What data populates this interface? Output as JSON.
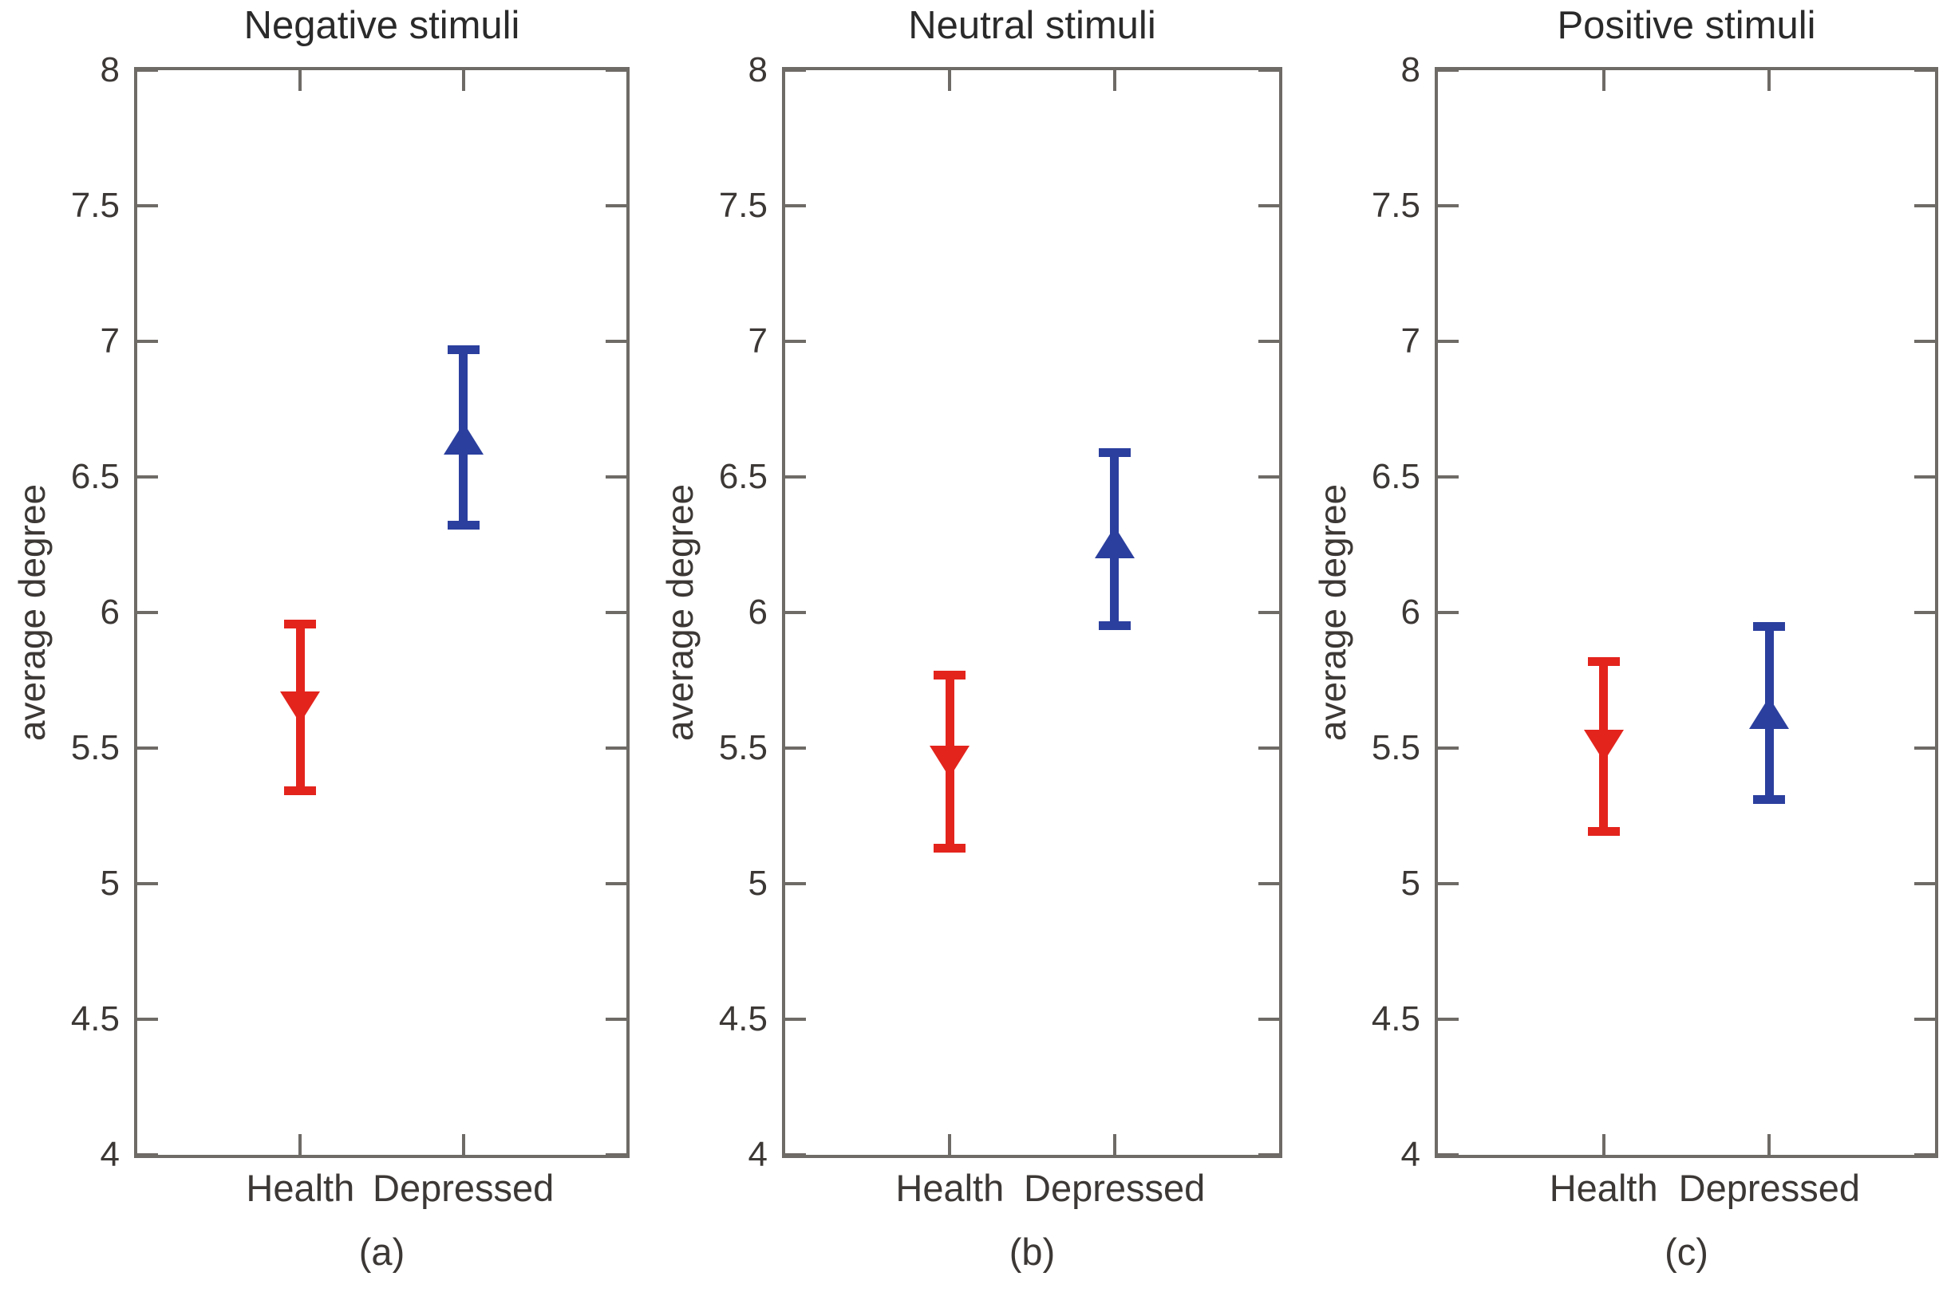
{
  "figure": {
    "background": "#ffffff",
    "grid": false,
    "legend": null
  },
  "style": {
    "axis_color": "#6e6a66",
    "tick_label_color": "#3c3836",
    "title_color": "#2a2a2a",
    "health_color": "#e3241d",
    "depressed_color": "#2b3f9e"
  },
  "chart_data": [
    {
      "type": "scatter",
      "subtype": "errorbar",
      "title": "Negative stimuli",
      "caption": "(a)",
      "xlabel": "",
      "ylabel": "average degree",
      "ylim": [
        4,
        8
      ],
      "yticks": [
        4,
        4.5,
        5,
        5.5,
        6,
        6.5,
        7,
        7.5,
        8
      ],
      "categories": [
        "Health",
        "Depressed"
      ],
      "series": [
        {
          "name": "Health",
          "marker": "triangle-down",
          "color": "#e3241d",
          "mean": 5.65,
          "ci_low": 5.34,
          "ci_high": 5.96
        },
        {
          "name": "Depressed",
          "marker": "triangle-up",
          "color": "#2b3f9e",
          "mean": 6.64,
          "ci_low": 6.32,
          "ci_high": 6.97
        }
      ]
    },
    {
      "type": "scatter",
      "subtype": "errorbar",
      "title": "Neutral stimuli",
      "caption": "(b)",
      "xlabel": "",
      "ylabel": "average degree",
      "ylim": [
        4,
        8
      ],
      "yticks": [
        4,
        4.5,
        5,
        5.5,
        6,
        6.5,
        7,
        7.5,
        8
      ],
      "categories": [
        "Health",
        "Depressed"
      ],
      "series": [
        {
          "name": "Health",
          "marker": "triangle-down",
          "color": "#e3241d",
          "mean": 5.45,
          "ci_low": 5.13,
          "ci_high": 5.77
        },
        {
          "name": "Depressed",
          "marker": "triangle-up",
          "color": "#2b3f9e",
          "mean": 6.26,
          "ci_low": 5.95,
          "ci_high": 6.59
        }
      ]
    },
    {
      "type": "scatter",
      "subtype": "errorbar",
      "title": "Positive stimuli",
      "caption": "(c)",
      "xlabel": "",
      "ylabel": "average degree",
      "ylim": [
        4,
        8
      ],
      "yticks": [
        4,
        4.5,
        5,
        5.5,
        6,
        6.5,
        7,
        7.5,
        8
      ],
      "categories": [
        "Health",
        "Depressed"
      ],
      "series": [
        {
          "name": "Health",
          "marker": "triangle-down",
          "color": "#e3241d",
          "mean": 5.51,
          "ci_low": 5.19,
          "ci_high": 5.82
        },
        {
          "name": "Depressed",
          "marker": "triangle-up",
          "color": "#2b3f9e",
          "mean": 5.63,
          "ci_low": 5.31,
          "ci_high": 5.95
        }
      ]
    }
  ]
}
